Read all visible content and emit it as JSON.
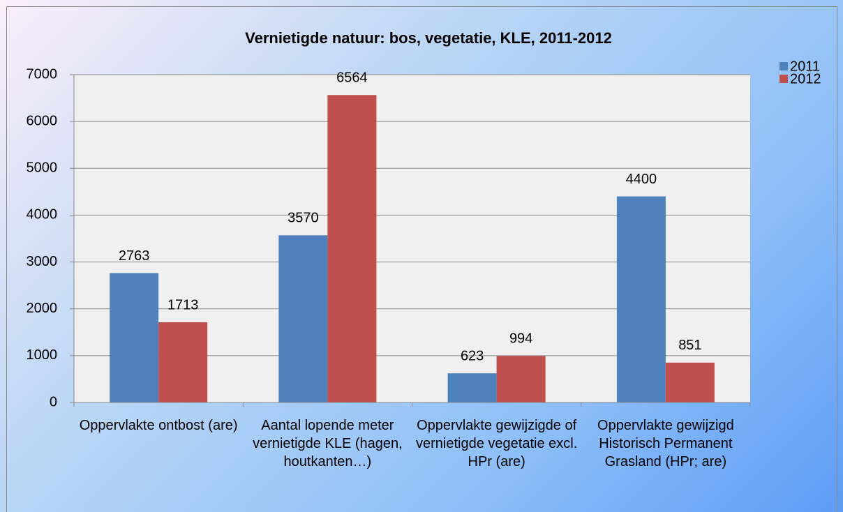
{
  "chart_data": {
    "type": "bar",
    "title": "Vernietigde natuur: bos, vegetatie, KLE, 2011-2012",
    "categories": [
      "Oppervlakte ontbost (are)",
      "Aantal lopende meter vernietigde KLE (hagen, houtkanten…)",
      "Oppervlakte gewijzigde of vernietigde vegetatie excl. HPr (are)",
      "Oppervlakte gewijzigd Historisch Permanent Grasland (HPr; are)"
    ],
    "series": [
      {
        "name": "2011",
        "color": "#4f81bd",
        "values": [
          2763,
          3570,
          623,
          4400
        ]
      },
      {
        "name": "2012",
        "color": "#c0504d",
        "values": [
          1713,
          6564,
          994,
          851
        ]
      }
    ],
    "ylim": [
      0,
      7000
    ],
    "yticks": [
      0,
      1000,
      2000,
      3000,
      4000,
      5000,
      6000,
      7000
    ],
    "grid": true,
    "legend": "right"
  }
}
